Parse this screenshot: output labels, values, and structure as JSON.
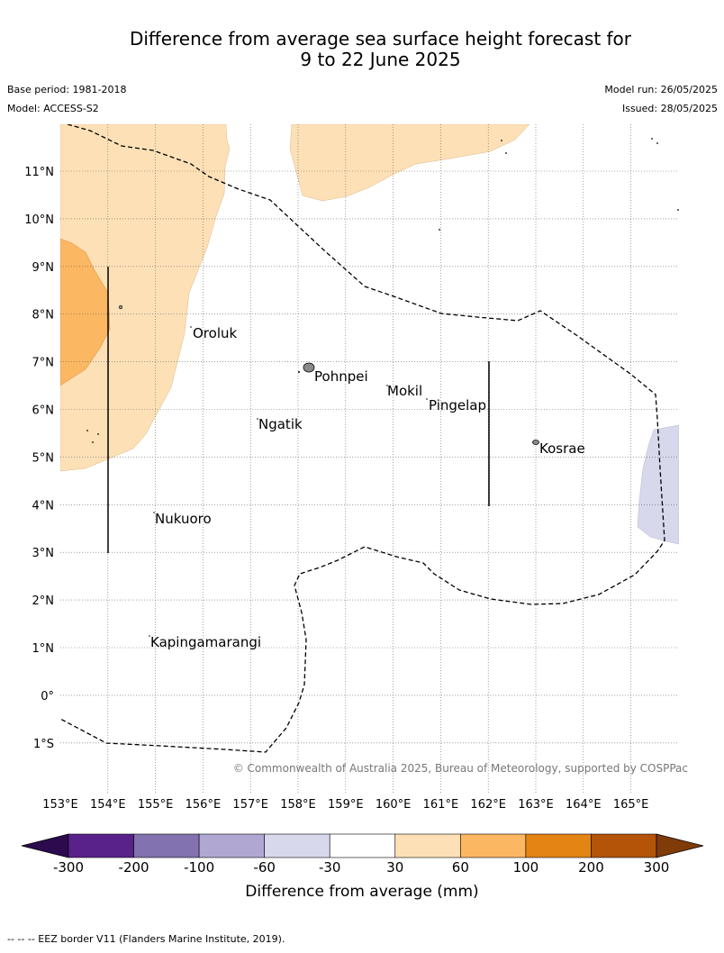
{
  "title": {
    "line1": "Difference from average sea surface height forecast for",
    "line2": "9 to 22 June 2025"
  },
  "meta": {
    "base_period": "Base period: 1981-2018",
    "model": "Model: ACCESS-S2",
    "model_run": "Model run: 26/05/2025",
    "issued": "Issued: 28/05/2025"
  },
  "map": {
    "lon_labels": [
      "153°E",
      "154°E",
      "155°E",
      "156°E",
      "157°E",
      "158°E",
      "159°E",
      "160°E",
      "161°E",
      "162°E",
      "163°E",
      "164°E",
      "165°E"
    ],
    "lat_labels": [
      "11°N",
      "10°N",
      "9°N",
      "8°N",
      "7°N",
      "6°N",
      "5°N",
      "4°N",
      "3°N",
      "2°N",
      "1°N",
      "0°",
      "1°S"
    ],
    "places": [
      {
        "name": "Oroluk",
        "lon": 155.7,
        "lat": 7.6
      },
      {
        "name": "Pohnpei",
        "lon": 158.2,
        "lat": 6.9
      },
      {
        "name": "Mokil",
        "lon": 159.8,
        "lat": 6.7
      },
      {
        "name": "Pingelap",
        "lon": 160.7,
        "lat": 6.2
      },
      {
        "name": "Ngatik",
        "lon": 157.1,
        "lat": 5.8
      },
      {
        "name": "Kosrae",
        "lon": 163.0,
        "lat": 5.3
      },
      {
        "name": "Nukuoro",
        "lon": 155.0,
        "lat": 3.8
      },
      {
        "name": "Kapingamarangi",
        "lon": 154.8,
        "lat": 1.1
      }
    ],
    "copyright": "© Commonwealth of Australia 2025, Bureau of Meteorology, supported by COSPPac"
  },
  "colorbar": {
    "title": "Difference from average (mm)",
    "tick_labels": [
      "-300",
      "-200",
      "-100",
      "-60",
      "-30",
      "30",
      "60",
      "100",
      "200",
      "300"
    ],
    "colors": [
      "#2d0a4e",
      "#58228a",
      "#8272b0",
      "#b0a8d2",
      "#d8d8ec",
      "#ffffff",
      "#fde0b6",
      "#fbb762",
      "#e38414",
      "#b45408",
      "#7f3b08"
    ]
  },
  "footer": "-- -- -- EEZ border V11 (Flanders Marine Institute, 2019)."
}
